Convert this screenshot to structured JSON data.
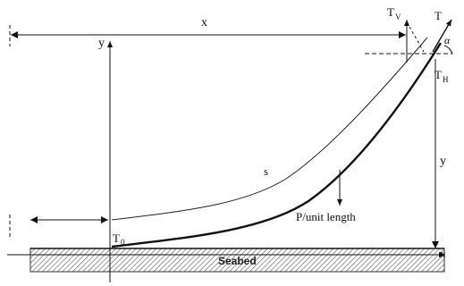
{
  "labels": {
    "x_distance": "x",
    "y_axis": "y",
    "tension_vertical": "T",
    "tension_vertical_sub": "V",
    "tension": "T",
    "angle": "α",
    "tension_horizontal": "T",
    "tension_horizontal_sub": "H",
    "depth": "y",
    "arc_length": "s",
    "weight_per_length": "P/unit length",
    "touchdown_tension": "T",
    "touchdown_sub": "0",
    "seabed": "Seabed",
    "x_axis": "x"
  }
}
